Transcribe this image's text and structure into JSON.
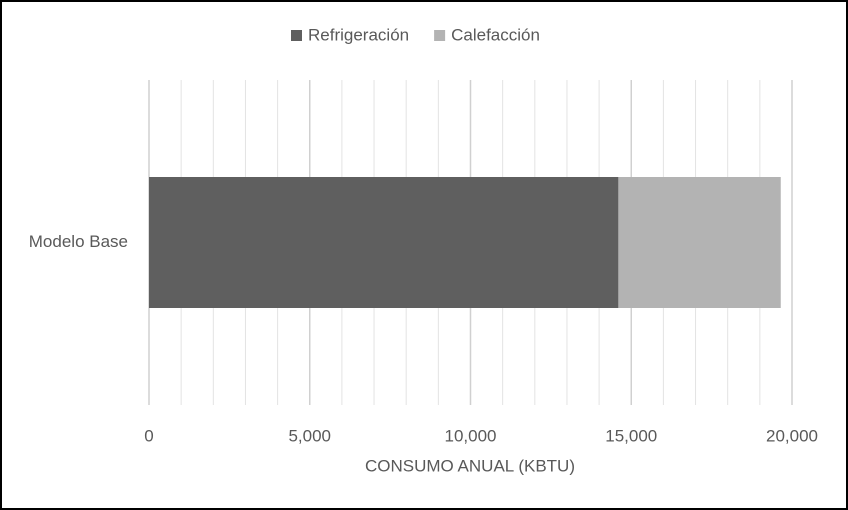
{
  "chart_data": {
    "type": "stacked-barh",
    "categories": [
      "Modelo Base"
    ],
    "series": [
      {
        "name": "Refrigeración",
        "color": "#5f5f5f",
        "values": [
          14600
        ]
      },
      {
        "name": "Calefacción",
        "color": "#b3b3b3",
        "values": [
          5050
        ]
      }
    ],
    "xlabel": "CONSUMO ANUAL (KBTU)",
    "xlim": [
      0,
      20000
    ],
    "xticks": [
      0,
      {
        "value": 5000,
        "label": "5,000"
      },
      {
        "value": 10000,
        "label": "10,000"
      },
      {
        "value": 15000,
        "label": "15,000"
      },
      {
        "value": 20000,
        "label": "20,000"
      }
    ],
    "xminor": [
      1000,
      2000,
      3000,
      4000,
      6000,
      7000,
      8000,
      9000,
      11000,
      12000,
      13000,
      14000,
      16000,
      17000,
      18000,
      19000
    ],
    "grid": true,
    "legend": "top"
  }
}
